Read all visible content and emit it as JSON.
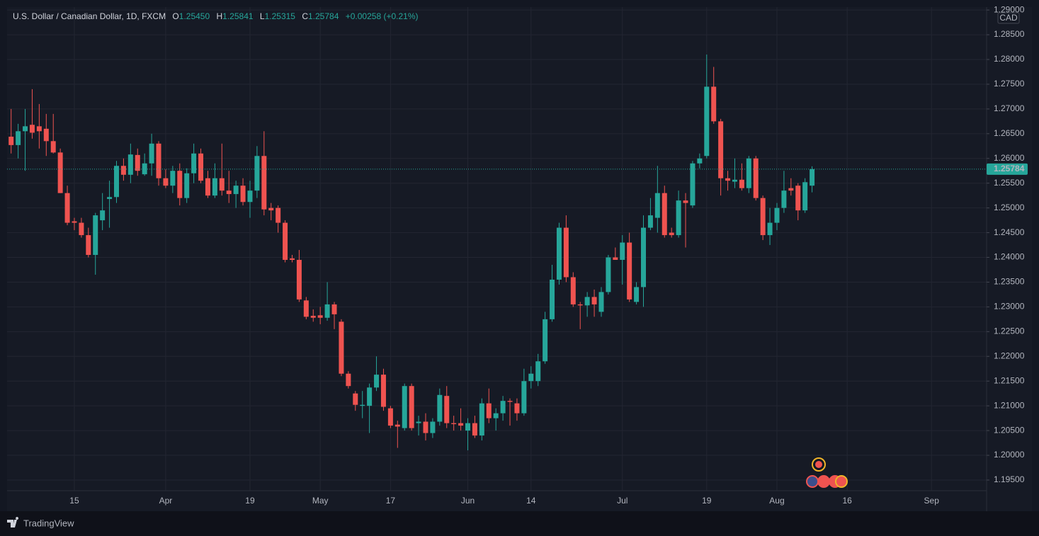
{
  "chart_data": {
    "type": "candlestick",
    "title": "U.S. Dollar / Canadian Dollar, 1D, FXCM",
    "legend_items": [
      {
        "label": "O",
        "value": "1.25450"
      },
      {
        "label": "H",
        "value": "1.25841"
      },
      {
        "label": "L",
        "value": "1.25315"
      },
      {
        "label": "C",
        "value": "1.25784"
      }
    ],
    "change": "+0.00258 (+0.21%)",
    "currency": "CAD",
    "brand": "TradingView",
    "up_color": "#26a69a",
    "down_color": "#ef5350",
    "grid": true,
    "categories": [
      null,
      null,
      null,
      null,
      null,
      null,
      null,
      null,
      null,
      "15",
      null,
      null,
      null,
      null,
      null,
      null,
      null,
      null,
      null,
      null,
      null,
      null,
      "Apr",
      null,
      null,
      null,
      null,
      null,
      null,
      null,
      null,
      null,
      null,
      null,
      "19",
      null,
      null,
      null,
      null,
      null,
      null,
      null,
      null,
      null,
      "May",
      null,
      null,
      null,
      null,
      null,
      null,
      null,
      null,
      null,
      "17",
      null,
      null,
      null,
      null,
      null,
      null,
      null,
      null,
      null,
      null,
      "Jun",
      null,
      null,
      null,
      null,
      null,
      null,
      null,
      null,
      "14",
      null,
      null,
      null,
      null,
      null,
      null,
      null,
      null,
      null,
      null,
      null,
      null,
      "Jul",
      null,
      null,
      null,
      null,
      null,
      null,
      null,
      null,
      null,
      null,
      null,
      "19",
      null,
      null,
      null,
      null,
      null,
      null,
      null,
      null,
      null,
      "Aug",
      null,
      null,
      null,
      null,
      null,
      null,
      null,
      null,
      null,
      "16",
      null,
      null,
      null,
      null,
      null,
      null,
      null,
      null,
      null,
      null,
      null,
      "Sep",
      null,
      null,
      null,
      null,
      null,
      null,
      null
    ],
    "open": [
      1.2644,
      1.2627,
      1.2655,
      1.2668,
      1.2665,
      1.266,
      1.2635,
      1.2612,
      1.253,
      1.2473,
      1.247,
      1.2445,
      1.2405,
      1.2475,
      1.2518,
      1.2522,
      1.2585,
      1.2567,
      1.2607,
      1.2568,
      1.259,
      1.263,
      1.256,
      1.2545,
      1.2575,
      1.252,
      1.257,
      1.261,
      1.256,
      1.2525,
      1.256,
      1.2535,
      1.2528,
      1.2545,
      1.2512,
      1.2535,
      1.2605,
      1.25,
      1.25,
      1.247,
      1.2398,
      1.2395,
      1.2313,
      1.2282,
      1.2283,
      1.2278,
      1.2305,
      1.227,
      1.2165,
      1.2125,
      1.21,
      1.21,
      1.2137,
      1.2163,
      1.2095,
      1.2062,
      1.2055,
      1.214,
      1.2065,
      1.2068,
      1.2045,
      1.2068,
      1.212,
      1.2065,
      1.2065,
      1.205,
      1.2065,
      1.204,
      1.2105,
      1.2075,
      1.2085,
      1.211,
      1.2105,
      1.2085,
      1.215,
      1.215,
      1.219,
      1.2275,
      1.2355,
      1.246,
      1.236,
      1.2305,
      1.2303,
      1.232,
      1.229,
      1.233,
      1.24,
      1.2395,
      1.243,
      1.231,
      1.234,
      1.246,
      1.248,
      1.253,
      1.245,
      1.2445,
      1.2515,
      1.2505,
      1.259,
      1.2605,
      1.2745,
      1.2675,
      1.256,
      1.2553,
      1.2557,
      1.254,
      1.26,
      1.252,
      1.2445,
      1.247,
      1.25,
      1.254,
      1.2545,
      1.2495,
      1.2545,
      null,
      null,
      null,
      null,
      null,
      null,
      null,
      null,
      null,
      null,
      null,
      null,
      null,
      null,
      null,
      null,
      null,
      null,
      null,
      null,
      null,
      null,
      null,
      null
    ],
    "high": [
      1.27,
      1.267,
      1.27,
      1.274,
      1.271,
      1.269,
      1.269,
      1.262,
      1.2545,
      1.248,
      1.248,
      1.246,
      1.249,
      1.253,
      1.2555,
      1.2595,
      1.26,
      1.263,
      1.262,
      1.261,
      1.265,
      1.2635,
      1.2578,
      1.2585,
      1.259,
      1.258,
      1.263,
      1.262,
      1.2575,
      1.259,
      1.263,
      1.2575,
      1.2555,
      1.256,
      1.2555,
      1.2625,
      1.2655,
      1.251,
      1.2505,
      1.2475,
      1.2405,
      1.2415,
      1.232,
      1.2295,
      1.23,
      1.235,
      1.231,
      1.2275,
      1.217,
      1.213,
      1.213,
      1.2145,
      1.22,
      1.2175,
      1.21,
      1.207,
      1.2145,
      1.2145,
      1.208,
      1.2085,
      1.2075,
      1.2135,
      1.214,
      1.208,
      1.2095,
      1.2075,
      1.208,
      1.2115,
      1.2135,
      1.2095,
      1.212,
      1.2115,
      1.2115,
      1.2175,
      1.218,
      1.2205,
      1.229,
      1.2385,
      1.247,
      1.2485,
      1.237,
      1.231,
      1.233,
      1.2335,
      1.234,
      1.2405,
      1.242,
      1.2445,
      1.245,
      1.235,
      1.2485,
      1.252,
      1.2585,
      1.2545,
      1.246,
      1.2535,
      1.253,
      1.2595,
      1.261,
      1.281,
      1.2785,
      1.268,
      1.2575,
      1.26,
      1.259,
      1.2605,
      1.2605,
      1.2525,
      1.25,
      1.251,
      1.2575,
      1.256,
      1.255,
      1.256,
      1.25841,
      null,
      null,
      null,
      null,
      null,
      null,
      null,
      null,
      null,
      null,
      null,
      null,
      null,
      null,
      null,
      null,
      null,
      null,
      null,
      null,
      null,
      null,
      null,
      null
    ],
    "low": [
      1.261,
      1.26,
      1.2575,
      1.264,
      1.262,
      1.2605,
      1.261,
      1.253,
      1.2465,
      1.2455,
      1.244,
      1.24,
      1.2365,
      1.2455,
      1.246,
      1.251,
      1.2555,
      1.255,
      1.2565,
      1.2565,
      1.2565,
      1.2545,
      1.254,
      1.253,
      1.2505,
      1.251,
      1.255,
      1.255,
      1.252,
      1.252,
      1.2525,
      1.251,
      1.25,
      1.2505,
      1.248,
      1.252,
      1.2485,
      1.2475,
      1.245,
      1.239,
      1.239,
      1.231,
      1.2275,
      1.227,
      1.2265,
      1.2272,
      1.2255,
      1.216,
      1.2135,
      1.209,
      1.2075,
      1.2045,
      1.213,
      1.209,
      1.2055,
      1.2015,
      1.205,
      1.205,
      1.204,
      1.203,
      1.2035,
      1.206,
      1.2055,
      1.205,
      1.205,
      1.201,
      1.2035,
      1.203,
      1.2065,
      1.205,
      1.207,
      1.206,
      1.207,
      1.208,
      1.2135,
      1.214,
      1.2185,
      1.227,
      1.2345,
      1.235,
      1.23,
      1.2255,
      1.228,
      1.228,
      1.228,
      1.2325,
      1.2395,
      1.2345,
      1.231,
      1.2305,
      1.23,
      1.2455,
      1.245,
      1.244,
      1.244,
      1.244,
      1.242,
      1.25,
      1.258,
      1.26,
      1.267,
      1.2525,
      1.2535,
      1.254,
      1.2535,
      1.253,
      1.2515,
      1.2435,
      1.2425,
      1.2455,
      1.249,
      1.2525,
      1.2475,
      1.249,
      1.25315,
      null,
      null,
      null,
      null,
      null,
      null,
      null,
      null,
      null,
      null,
      null,
      null,
      null,
      null,
      null,
      null,
      null,
      null,
      null,
      null,
      null,
      null,
      null,
      null
    ],
    "close": [
      1.2627,
      1.2655,
      1.2665,
      1.2652,
      1.2655,
      1.2635,
      1.2612,
      1.253,
      1.247,
      1.247,
      1.2445,
      1.2405,
      1.2485,
      1.2495,
      1.2522,
      1.2585,
      1.2567,
      1.2608,
      1.2575,
      1.259,
      1.263,
      1.256,
      1.2545,
      1.2575,
      1.252,
      1.257,
      1.261,
      1.2555,
      1.2525,
      1.256,
      1.2535,
      1.2528,
      1.2545,
      1.2512,
      1.2535,
      1.2605,
      1.2497,
      1.2495,
      1.247,
      1.2395,
      1.2395,
      1.2315,
      1.228,
      1.2278,
      1.2278,
      1.2305,
      1.2285,
      1.2165,
      1.214,
      1.2102,
      1.2102,
      1.2137,
      1.2163,
      1.2098,
      1.206,
      1.2058,
      1.214,
      1.2055,
      1.2068,
      1.2045,
      1.2068,
      1.2122,
      1.2065,
      1.2063,
      1.206,
      1.2065,
      1.204,
      1.2105,
      1.2075,
      1.2085,
      1.211,
      1.2108,
      1.2085,
      1.215,
      1.2165,
      1.219,
      1.2275,
      1.2355,
      1.246,
      1.236,
      1.2305,
      1.2303,
      1.232,
      1.2305,
      1.233,
      1.24,
      1.2395,
      1.243,
      1.2315,
      1.234,
      1.246,
      1.2485,
      1.253,
      1.2445,
      1.2445,
      1.2515,
      1.251,
      1.259,
      1.26,
      1.2745,
      1.2675,
      1.256,
      1.2555,
      1.2557,
      1.254,
      1.26,
      1.252,
      1.2445,
      1.247,
      1.25,
      1.2535,
      1.2535,
      1.2495,
      1.2552,
      1.25784,
      null,
      null,
      null,
      null,
      null,
      null,
      null,
      null,
      null,
      null,
      null,
      null,
      null,
      null,
      null,
      null,
      null,
      null,
      null,
      null,
      null,
      null,
      null,
      null
    ],
    "ylim": [
      1.19285,
      1.29059
    ],
    "yticks": [
      {
        "value": 1.195,
        "label": "1.19500"
      },
      {
        "value": 1.2,
        "label": "1.20000"
      },
      {
        "value": 1.205,
        "label": "1.20500"
      },
      {
        "value": 1.21,
        "label": "1.21000"
      },
      {
        "value": 1.215,
        "label": "1.21500"
      },
      {
        "value": 1.22,
        "label": "1.22000"
      },
      {
        "value": 1.225,
        "label": "1.22500"
      },
      {
        "value": 1.23,
        "label": "1.23000"
      },
      {
        "value": 1.235,
        "label": "1.23500"
      },
      {
        "value": 1.24,
        "label": "1.24000"
      },
      {
        "value": 1.245,
        "label": "1.24500"
      },
      {
        "value": 1.25,
        "label": "1.25000"
      },
      {
        "value": 1.255,
        "label": "1.25500"
      },
      {
        "value": 1.26,
        "label": "1.26000"
      },
      {
        "value": 1.265,
        "label": "1.26500"
      },
      {
        "value": 1.27,
        "label": "1.27000"
      },
      {
        "value": 1.275,
        "label": "1.27500"
      },
      {
        "value": 1.28,
        "label": "1.28000"
      },
      {
        "value": 1.285,
        "label": "1.28500"
      },
      {
        "value": 1.29,
        "label": "1.29000"
      }
    ],
    "last_price": {
      "value": 1.25784,
      "label": "1.25784"
    }
  }
}
